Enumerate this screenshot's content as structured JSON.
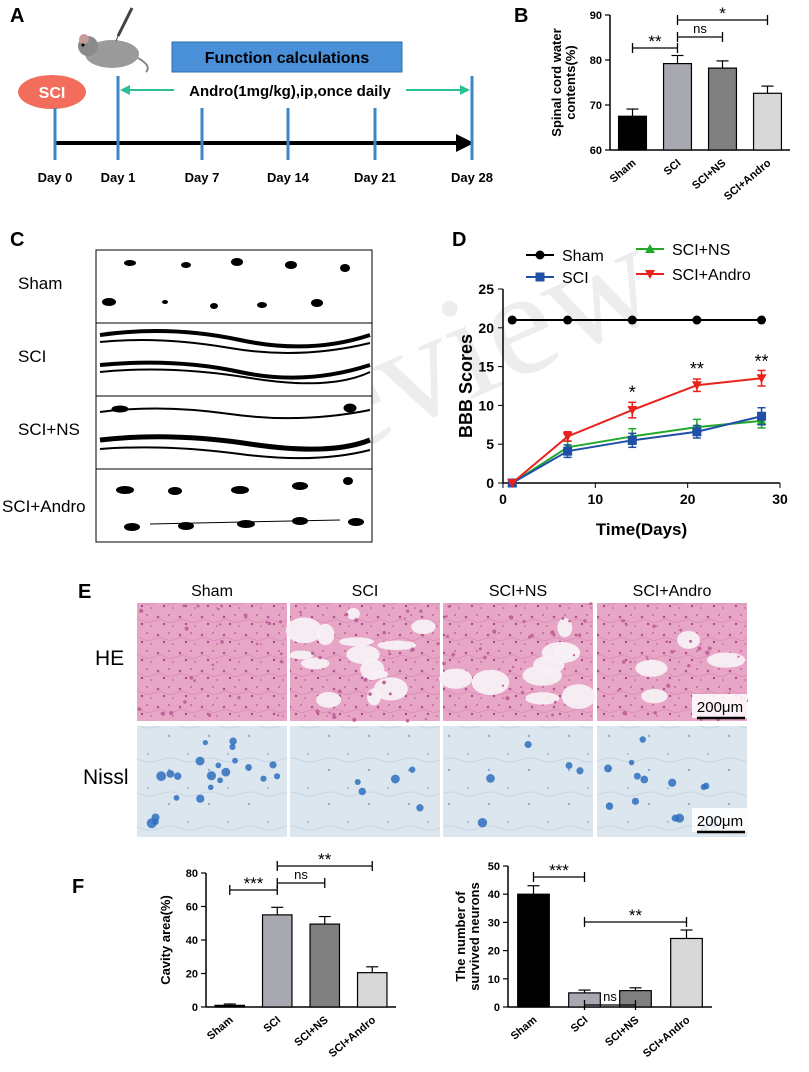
{
  "panels": {
    "a": "A",
    "b": "B",
    "c": "C",
    "d": "D",
    "e": "E",
    "f": "F"
  },
  "panel_a": {
    "injury": "SCI",
    "banner": "Function calculations",
    "treatment": "Andro(1mg/kg),ip,once daily",
    "days": [
      "Day 0",
      "Day 1",
      "Day 7",
      "Day 14",
      "Day 21",
      "Day 28"
    ],
    "colors": {
      "banner": "#4a90d9",
      "injury": "#f26d5b",
      "arrow": "#2bbf96",
      "tick": "#3e86c6"
    }
  },
  "panel_c": {
    "rows": [
      "Sham",
      "SCI",
      "SCI+NS",
      "SCI+Andro"
    ]
  },
  "panel_e": {
    "columns": [
      "Sham",
      "SCI",
      "SCI+NS",
      "SCI+Andro"
    ],
    "rows": [
      "HE",
      "Nissl"
    ],
    "scale_bar": "200μm",
    "colors": {
      "he_bg": "#e8a6c6",
      "he_dot": "#c2649c",
      "nissl_bg": "#dbe6ee",
      "nissl_dot": "#2f6fbf"
    }
  },
  "watermark": "In review",
  "chart_data": [
    {
      "id": "B",
      "type": "bar",
      "ylabel": "Spinal cord water contents(%)",
      "ylim": [
        60,
        90
      ],
      "yticks": [
        60,
        70,
        80,
        90
      ],
      "categories": [
        "Sham",
        "SCI",
        "SCI+NS",
        "SCI+Andro"
      ],
      "values": [
        67.5,
        79.2,
        78.2,
        72.6
      ],
      "errors": [
        1.6,
        1.8,
        1.6,
        1.6
      ],
      "colors": [
        "#000000",
        "#a8a8b0",
        "#808080",
        "#d8d8d8"
      ],
      "significance": [
        {
          "from": 0,
          "to": 1,
          "label": "**"
        },
        {
          "from": 1,
          "to": 2,
          "label": "ns"
        },
        {
          "from": 1,
          "to": 3,
          "label": "*"
        }
      ]
    },
    {
      "id": "D",
      "type": "line",
      "xlabel": "Time(Days)",
      "ylabel": "BBB Scores",
      "xlim": [
        0,
        30
      ],
      "ylim": [
        0,
        25
      ],
      "xticks": [
        0,
        10,
        20,
        30
      ],
      "yticks": [
        0,
        5,
        10,
        15,
        20,
        25
      ],
      "legend": "top",
      "series": [
        {
          "name": "Sham",
          "color": "#000000",
          "marker": "circle",
          "x": [
            1,
            7,
            14,
            21,
            28
          ],
          "y": [
            21,
            21,
            21,
            21,
            21
          ],
          "err": [
            0,
            0,
            0,
            0,
            0
          ]
        },
        {
          "name": "SCI+NS",
          "color": "#22a92a",
          "marker": "triangle-up",
          "x": [
            1,
            7,
            14,
            21,
            28
          ],
          "y": [
            0,
            4.6,
            6.0,
            7.2,
            8.0
          ],
          "err": [
            0,
            0.8,
            1.0,
            1.0,
            0.9
          ]
        },
        {
          "name": "SCI",
          "color": "#1f4fa6",
          "marker": "square",
          "x": [
            1,
            7,
            14,
            21,
            28
          ],
          "y": [
            0,
            4.1,
            5.5,
            6.6,
            8.6
          ],
          "err": [
            0,
            0.8,
            0.9,
            0.8,
            1.1
          ]
        },
        {
          "name": "SCI+Andro",
          "color": "#e8231c",
          "marker": "triangle-down",
          "x": [
            1,
            7,
            14,
            21,
            28
          ],
          "y": [
            0,
            6.0,
            9.4,
            12.6,
            13.5
          ],
          "err": [
            0,
            0.6,
            1.0,
            0.8,
            1.0
          ]
        }
      ],
      "annotations": [
        {
          "x": 14,
          "y": 10.9,
          "label": "*"
        },
        {
          "x": 21,
          "y": 13.9,
          "label": "**"
        },
        {
          "x": 28,
          "y": 14.9,
          "label": "**"
        }
      ]
    },
    {
      "id": "F-left",
      "type": "bar",
      "ylabel": "Cavity area(%)",
      "ylim": [
        0,
        80
      ],
      "yticks": [
        0,
        20,
        40,
        60,
        80
      ],
      "categories": [
        "Sham",
        "SCI",
        "SCI+NS",
        "SCI+Andro"
      ],
      "values": [
        1,
        55,
        49.5,
        20.5
      ],
      "errors": [
        0.8,
        4.5,
        4.5,
        3.5
      ],
      "colors": [
        "#000000",
        "#a8a8b0",
        "#808080",
        "#d8d8d8"
      ],
      "significance": [
        {
          "from": 0,
          "to": 1,
          "label": "***"
        },
        {
          "from": 1,
          "to": 2,
          "label": "ns"
        },
        {
          "from": 1,
          "to": 3,
          "label": "**"
        }
      ]
    },
    {
      "id": "F-right",
      "type": "bar",
      "ylabel": "The number of survived neurons",
      "ylim": [
        0,
        50
      ],
      "yticks": [
        0,
        10,
        20,
        30,
        40,
        50
      ],
      "categories": [
        "Sham",
        "SCI",
        "SCI+NS",
        "SCI+Andro"
      ],
      "values": [
        40,
        5,
        5.8,
        24.3
      ],
      "errors": [
        3.0,
        1.0,
        1.0,
        3.0
      ],
      "colors": [
        "#000000",
        "#a8a8b0",
        "#808080",
        "#d8d8d8"
      ],
      "significance": [
        {
          "from": 0,
          "to": 1,
          "label": "***"
        },
        {
          "from": 1,
          "to": 2,
          "label": "ns"
        },
        {
          "from": 1,
          "to": 3,
          "label": "**"
        }
      ]
    }
  ]
}
